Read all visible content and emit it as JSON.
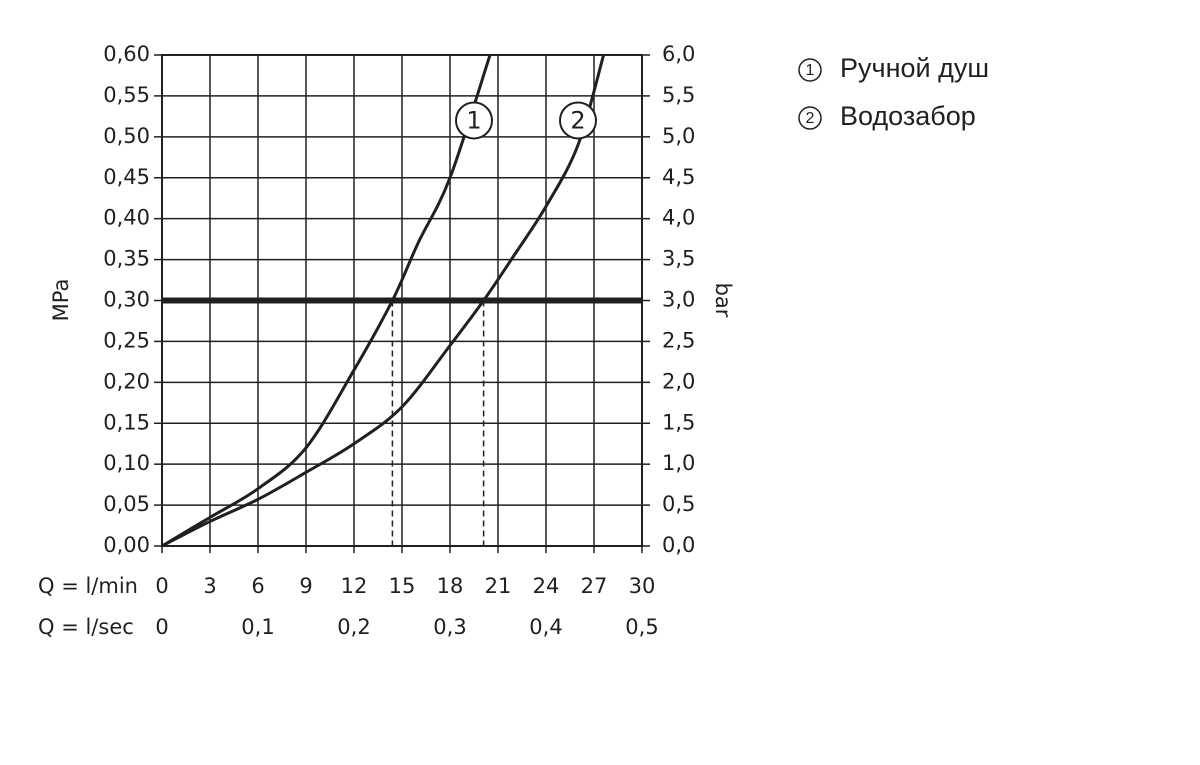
{
  "chart_data": {
    "type": "line",
    "y_label": "MPa",
    "y2_label": "bar",
    "x_label": "Q = l/min",
    "x2_label": "Q = l/sec",
    "xlim": [
      0,
      30
    ],
    "xticks": [
      0,
      3,
      6,
      9,
      12,
      15,
      18,
      21,
      24,
      27,
      30
    ],
    "x2lim": [
      0,
      0.5
    ],
    "x2ticks": [
      0,
      {
        "value": 0.1,
        "label": "0,1"
      },
      {
        "value": 0.2,
        "label": "0,2"
      },
      {
        "value": 0.3,
        "label": "0,3"
      },
      {
        "value": 0.4,
        "label": "0,4"
      },
      {
        "value": 0.5,
        "label": "0,5"
      }
    ],
    "ylim": [
      0,
      0.6
    ],
    "yticks": [
      {
        "value": 0,
        "label": "0,00"
      },
      {
        "value": 0.05,
        "label": "0,05"
      },
      {
        "value": 0.1,
        "label": "0,10"
      },
      {
        "value": 0.15,
        "label": "0,15"
      },
      {
        "value": 0.2,
        "label": "0,20"
      },
      {
        "value": 0.25,
        "label": "0,25"
      },
      {
        "value": 0.3,
        "label": "0,30"
      },
      {
        "value": 0.35,
        "label": "0,35"
      },
      {
        "value": 0.4,
        "label": "0,40"
      },
      {
        "value": 0.45,
        "label": "0,45"
      },
      {
        "value": 0.5,
        "label": "0,50"
      },
      {
        "value": 0.55,
        "label": "0,55"
      },
      {
        "value": 0.6,
        "label": "0,60"
      }
    ],
    "y2lim": [
      0,
      6
    ],
    "y2ticks": [
      {
        "value": 0,
        "label": "0,0"
      },
      {
        "value": 0.5,
        "label": "0,5"
      },
      {
        "value": 1,
        "label": "1,0"
      },
      {
        "value": 1.5,
        "label": "1,5"
      },
      {
        "value": 2,
        "label": "2,0"
      },
      {
        "value": 2.5,
        "label": "2,5"
      },
      {
        "value": 3,
        "label": "3,0"
      },
      {
        "value": 3.5,
        "label": "3,5"
      },
      {
        "value": 4,
        "label": "4,0"
      },
      {
        "value": 4.5,
        "label": "4,5"
      },
      {
        "value": 5,
        "label": "5,0"
      },
      {
        "value": 5.5,
        "label": "5,5"
      },
      {
        "value": 6,
        "label": "6,0"
      }
    ],
    "grid": true,
    "hline": 0.3,
    "vlines": [
      14.4,
      20.1
    ],
    "series": [
      {
        "name": "Ручной душ",
        "label": "1",
        "color": "#231f20",
        "x": [
          0,
          3,
          6,
          9,
          12,
          14.4,
          16,
          18,
          20.5
        ],
        "values": [
          0,
          0.035,
          0.07,
          0.12,
          0.215,
          0.3,
          0.37,
          0.45,
          0.6
        ],
        "label_at": [
          19.5,
          0.52
        ]
      },
      {
        "name": "Водозабор",
        "label": "2",
        "color": "#231f20",
        "x": [
          0,
          3,
          6,
          9,
          12,
          15,
          18,
          20.1,
          22,
          24,
          26,
          27.6
        ],
        "values": [
          0,
          0.03,
          0.057,
          0.09,
          0.125,
          0.17,
          0.245,
          0.3,
          0.355,
          0.415,
          0.49,
          0.6
        ],
        "label_at": [
          26,
          0.52
        ]
      }
    ]
  }
}
